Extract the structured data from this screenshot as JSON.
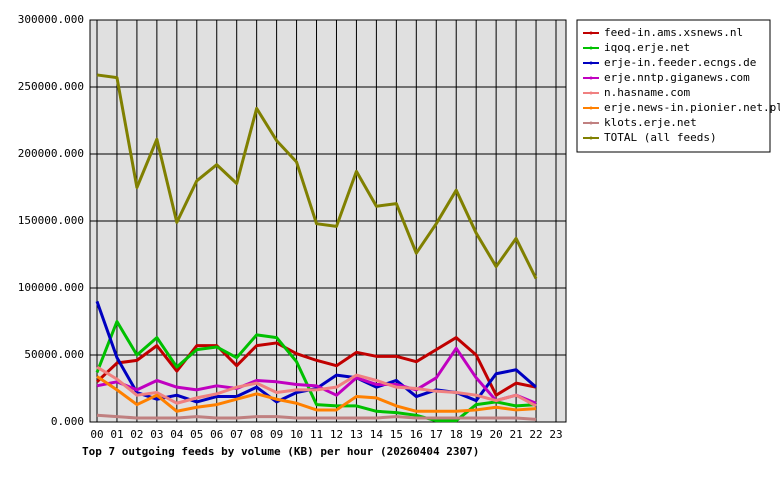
{
  "chart_data": {
    "type": "line",
    "title": "Top 7 outgoing feeds by volume (KB) per hour (20260404 2307)",
    "categories": [
      "00",
      "01",
      "02",
      "03",
      "04",
      "05",
      "06",
      "07",
      "08",
      "09",
      "10",
      "11",
      "12",
      "13",
      "14",
      "15",
      "16",
      "17",
      "18",
      "19",
      "20",
      "21",
      "22",
      "23"
    ],
    "ylim": [
      0,
      300000
    ],
    "yticks": [
      {
        "value": 0,
        "label": "0.000"
      },
      {
        "value": 50000,
        "label": "50000.000"
      },
      {
        "value": 100000,
        "label": "100000.000"
      },
      {
        "value": 150000,
        "label": "150000.000"
      },
      {
        "value": 200000,
        "label": "200000.000"
      },
      {
        "value": 250000,
        "label": "250000.000"
      },
      {
        "value": 300000,
        "label": "300000.000"
      }
    ],
    "grid": true,
    "series": [
      {
        "name": "feed-in.ams.xsnews.nl",
        "color": "#c00000",
        "values": [
          30000,
          44000,
          46000,
          57000,
          38000,
          57000,
          57000,
          42000,
          57000,
          59000,
          51000,
          46000,
          42000,
          52000,
          49000,
          49000,
          45000,
          54000,
          63000,
          50000,
          20000,
          29000,
          26000,
          null
        ]
      },
      {
        "name": "iqoq.erje.net",
        "color": "#00c000",
        "values": [
          37000,
          75000,
          50000,
          63000,
          41000,
          54000,
          56000,
          48000,
          65000,
          63000,
          45000,
          13000,
          12000,
          12000,
          8000,
          7000,
          5000,
          1000,
          1000,
          13000,
          15000,
          12000,
          13000,
          null
        ]
      },
      {
        "name": "erje-in.feeder.ecngs.de",
        "color": "#0000c0",
        "values": [
          90000,
          48000,
          22000,
          17000,
          20000,
          15000,
          19000,
          19000,
          26000,
          15000,
          22000,
          25000,
          35000,
          33000,
          26000,
          31000,
          19000,
          24000,
          22000,
          16000,
          36000,
          39000,
          26000,
          null
        ]
      },
      {
        "name": "erje.nntp.giganews.com",
        "color": "#c000c0",
        "values": [
          27000,
          30000,
          24000,
          31000,
          26000,
          24000,
          27000,
          25000,
          31000,
          30000,
          28000,
          27000,
          20000,
          33000,
          28000,
          28000,
          24000,
          33000,
          55000,
          33000,
          16000,
          20000,
          14000,
          null
        ]
      },
      {
        "name": "n.hasname.com",
        "color": "#f08080",
        "values": [
          41000,
          32000,
          20000,
          22000,
          14000,
          18000,
          21000,
          26000,
          29000,
          22000,
          24000,
          24000,
          26000,
          35000,
          31000,
          26000,
          25000,
          23000,
          22000,
          20000,
          16000,
          20000,
          12000,
          null
        ]
      },
      {
        "name": "erje.news-in.pionier.net.pl",
        "color": "#ff8000",
        "values": [
          34000,
          24000,
          13000,
          20000,
          8000,
          11000,
          13000,
          17000,
          21000,
          17000,
          14000,
          9000,
          9000,
          19000,
          18000,
          12000,
          8000,
          8000,
          8000,
          9000,
          11000,
          9000,
          10000,
          null
        ]
      },
      {
        "name": "klots.erje.net",
        "color": "#c08080",
        "values": [
          5000,
          4000,
          3000,
          3000,
          3000,
          4000,
          3000,
          3000,
          4000,
          4000,
          3000,
          3000,
          3000,
          3000,
          3000,
          4000,
          3000,
          3000,
          3000,
          3000,
          3000,
          3000,
          2000,
          null
        ]
      },
      {
        "name": "TOTAL (all feeds)",
        "color": "#808000",
        "values": [
          259000,
          257000,
          175000,
          211000,
          149000,
          180000,
          192000,
          178000,
          234000,
          210000,
          194000,
          148000,
          146000,
          187000,
          161000,
          163000,
          126000,
          148000,
          173000,
          141000,
          116000,
          137000,
          107000,
          null
        ]
      }
    ]
  }
}
